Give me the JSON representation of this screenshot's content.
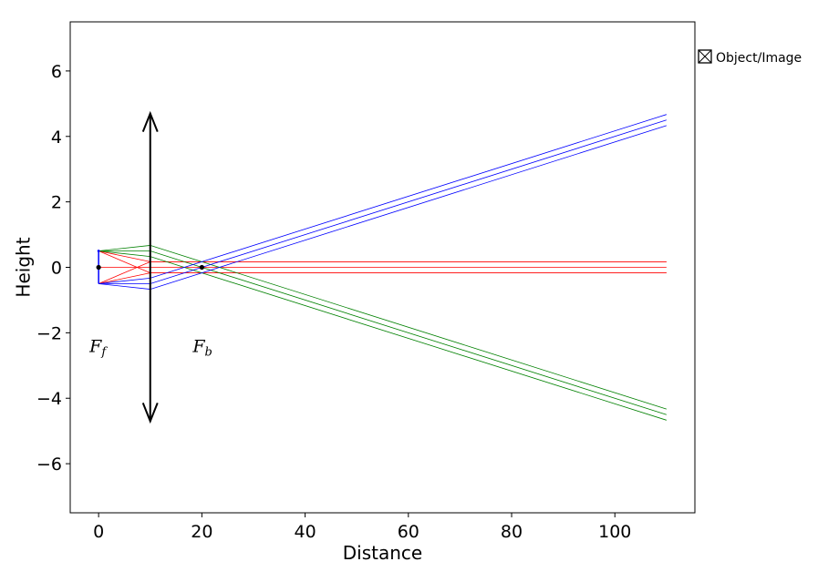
{
  "chart_data": {
    "type": "line",
    "title": "",
    "xlabel": "Distance",
    "ylabel": "Height",
    "xlim": [
      -5.5,
      115.5
    ],
    "ylim": [
      -7.5,
      7.5
    ],
    "xticks": [
      0,
      20,
      40,
      60,
      80,
      100
    ],
    "yticks": [
      -6,
      -4,
      -2,
      0,
      2,
      4,
      6
    ],
    "xtick_labels": [
      "0",
      "20",
      "40",
      "60",
      "80",
      "100"
    ],
    "ytick_labels": [
      "−6",
      "−4",
      "−2",
      "0",
      "2",
      "4",
      "6"
    ],
    "grid": false,
    "lens": {
      "x": 10,
      "half_height": 4.7
    },
    "object": {
      "x": 0,
      "y_top": 0.5,
      "y_bottom": -0.5
    },
    "focal_points": [
      {
        "id": "front",
        "x": 0,
        "y": 0,
        "label_base": "F",
        "label_sub": "f",
        "label_y": -2.4
      },
      {
        "id": "back",
        "x": 20,
        "y": 0,
        "label_base": "F",
        "label_sub": "b",
        "label_y": -2.4
      }
    ],
    "legend": {
      "position": "outside-right",
      "entries": [
        "Object/Image"
      ]
    },
    "series": [
      {
        "color": "#ff0000",
        "points": [
          [
            0,
            0.5
          ],
          [
            10,
            0.17
          ],
          [
            110,
            0.17
          ]
        ]
      },
      {
        "color": "#ff0000",
        "points": [
          [
            0,
            0
          ],
          [
            10,
            0
          ],
          [
            110,
            0
          ]
        ]
      },
      {
        "color": "#ff0000",
        "points": [
          [
            0,
            -0.5
          ],
          [
            10,
            -0.17
          ],
          [
            110,
            -0.17
          ]
        ]
      },
      {
        "color": "#ff0000",
        "points": [
          [
            0,
            0.5
          ],
          [
            10,
            -0.17
          ],
          [
            110,
            -0.17
          ]
        ]
      },
      {
        "color": "#ff0000",
        "points": [
          [
            0,
            -0.5
          ],
          [
            10,
            0.17
          ],
          [
            110,
            0.17
          ]
        ]
      },
      {
        "color": "#008000",
        "points": [
          [
            0,
            0.5
          ],
          [
            10,
            0.67
          ],
          [
            110,
            -4.33
          ]
        ]
      },
      {
        "color": "#008000",
        "points": [
          [
            0,
            0.5
          ],
          [
            10,
            0.5
          ],
          [
            110,
            -4.5
          ]
        ]
      },
      {
        "color": "#008000",
        "points": [
          [
            0,
            0.5
          ],
          [
            10,
            0.33
          ],
          [
            110,
            -4.67
          ]
        ]
      },
      {
        "color": "#0000ff",
        "points": [
          [
            0,
            -0.5
          ],
          [
            10,
            -0.67
          ],
          [
            110,
            4.33
          ]
        ]
      },
      {
        "color": "#0000ff",
        "points": [
          [
            0,
            -0.5
          ],
          [
            10,
            -0.5
          ],
          [
            110,
            4.5
          ]
        ]
      },
      {
        "color": "#0000ff",
        "points": [
          [
            0,
            -0.5
          ],
          [
            10,
            -0.33
          ],
          [
            110,
            4.67
          ]
        ]
      }
    ]
  }
}
